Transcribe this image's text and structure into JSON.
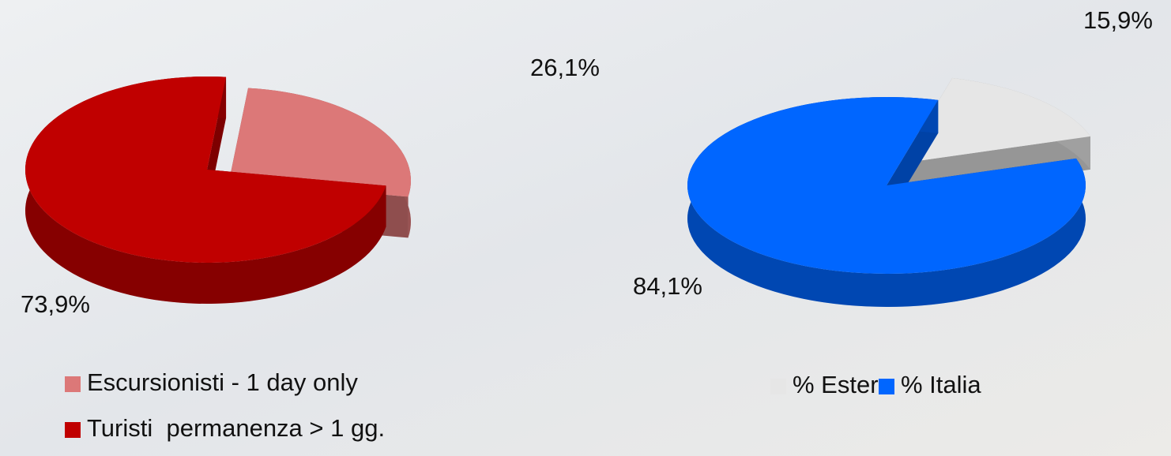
{
  "chart_data": [
    {
      "type": "pie",
      "categories": [
        "Escursionisti - 1 day only",
        "Turisti  permanenza > 1 gg."
      ],
      "values": [
        26.1,
        73.9
      ],
      "value_labels": [
        "26,1%",
        "73,9%"
      ],
      "colors": [
        "#dc7878",
        "#c00000"
      ]
    },
    {
      "type": "pie",
      "categories": [
        "% Estero",
        "% Italia"
      ],
      "values": [
        15.9,
        84.1
      ],
      "value_labels": [
        "15,9%",
        "84,1%"
      ],
      "colors": [
        "#e6e6e6",
        "#0066ff"
      ]
    }
  ]
}
